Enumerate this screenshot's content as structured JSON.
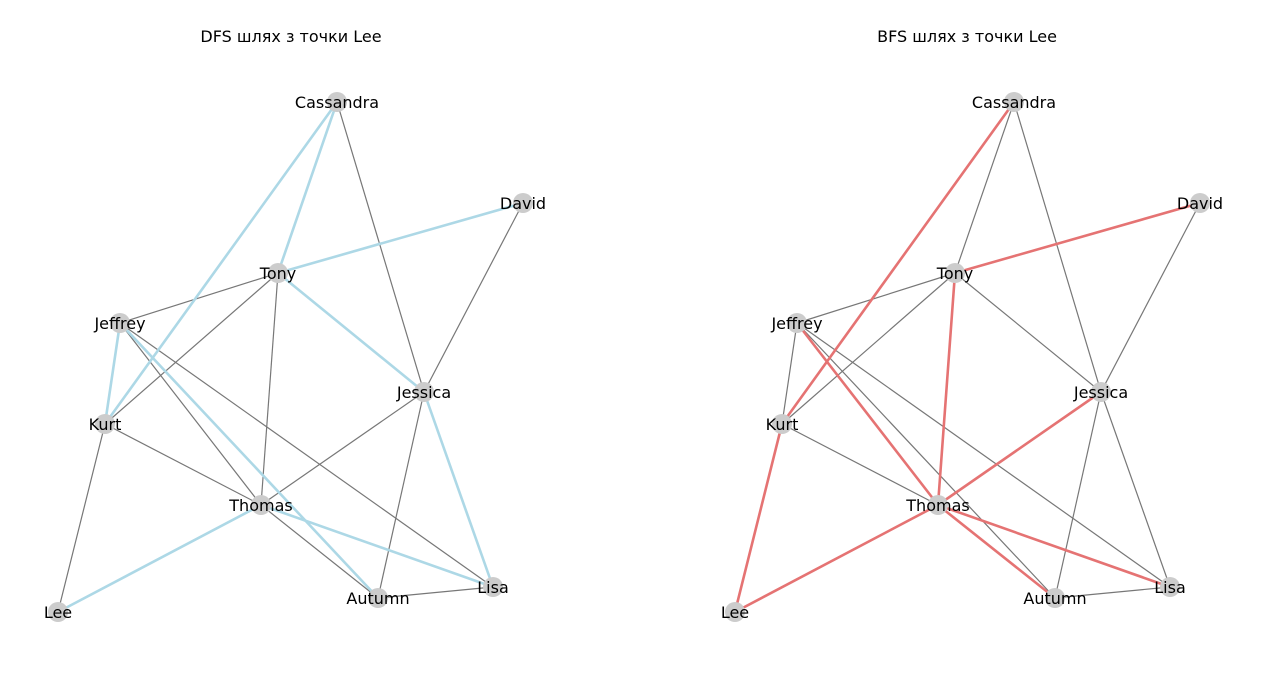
{
  "colors": {
    "node": "#cccccc",
    "edge": "#777777",
    "dfs_path": "#add8e6",
    "bfs_path": "#e57373"
  },
  "panels": [
    {
      "title": "DFS шлях з точки Lee",
      "path_color_key": "dfs_path"
    },
    {
      "title": "BFS шлях з точки Lee",
      "path_color_key": "bfs_path"
    }
  ],
  "chart_data": {
    "type": "graph",
    "nodes": [
      "Cassandra",
      "David",
      "Tony",
      "Jeffrey",
      "Jessica",
      "Kurt",
      "Thomas",
      "Lisa",
      "Autumn",
      "Lee"
    ],
    "edges": [
      [
        "Cassandra",
        "Tony"
      ],
      [
        "Cassandra",
        "Kurt"
      ],
      [
        "Cassandra",
        "Jessica"
      ],
      [
        "David",
        "Tony"
      ],
      [
        "David",
        "Jessica"
      ],
      [
        "Tony",
        "Jeffrey"
      ],
      [
        "Tony",
        "Kurt"
      ],
      [
        "Tony",
        "Jessica"
      ],
      [
        "Tony",
        "Thomas"
      ],
      [
        "Jeffrey",
        "Kurt"
      ],
      [
        "Jeffrey",
        "Thomas"
      ],
      [
        "Jeffrey",
        "Lisa"
      ],
      [
        "Jeffrey",
        "Autumn"
      ],
      [
        "Kurt",
        "Thomas"
      ],
      [
        "Kurt",
        "Lee"
      ],
      [
        "Thomas",
        "Jessica"
      ],
      [
        "Thomas",
        "Lee"
      ],
      [
        "Thomas",
        "Lisa"
      ],
      [
        "Thomas",
        "Autumn"
      ],
      [
        "Jessica",
        "Autumn"
      ],
      [
        "Jessica",
        "Lisa"
      ],
      [
        "Autumn",
        "Lisa"
      ]
    ],
    "dfs_tree_edges": [
      [
        "Lee",
        "Thomas"
      ],
      [
        "Thomas",
        "Lisa"
      ],
      [
        "Lisa",
        "Jessica"
      ],
      [
        "Jessica",
        "Tony"
      ],
      [
        "Tony",
        "Cassandra"
      ],
      [
        "Cassandra",
        "Kurt"
      ],
      [
        "Kurt",
        "Jeffrey"
      ],
      [
        "Jeffrey",
        "Autumn"
      ],
      [
        "Tony",
        "David"
      ]
    ],
    "bfs_tree_edges": [
      [
        "Lee",
        "Kurt"
      ],
      [
        "Lee",
        "Thomas"
      ],
      [
        "Kurt",
        "Cassandra"
      ],
      [
        "Thomas",
        "Tony"
      ],
      [
        "Thomas",
        "Jeffrey"
      ],
      [
        "Thomas",
        "Jessica"
      ],
      [
        "Thomas",
        "Lisa"
      ],
      [
        "Thomas",
        "Autumn"
      ],
      [
        "Tony",
        "David"
      ]
    ]
  }
}
